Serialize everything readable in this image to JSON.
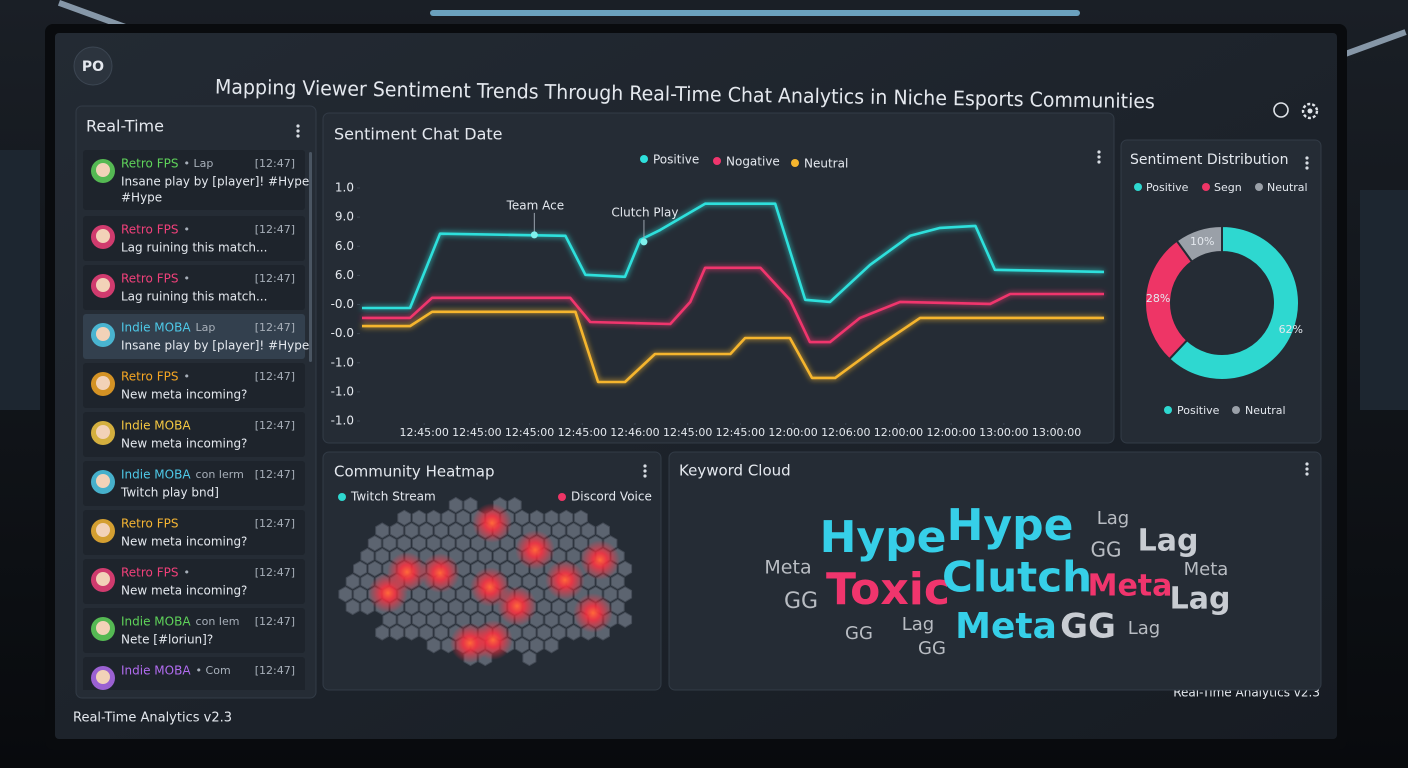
{
  "header": {
    "logo": "PO",
    "title": "Mapping Viewer Sentiment Trends Through Real-Time Chat Analytics in Niche Esports Communities"
  },
  "chat": {
    "title": "Real-Time",
    "messages": [
      {
        "channel": "Retro FPS",
        "tag": "• Lap",
        "time": "[12:47]",
        "lines": [
          "Insane play by [player]! #Hype",
          "#Hype"
        ],
        "color": "#5fd35a"
      },
      {
        "channel": "Retro FPS",
        "tag": "•",
        "time": "[12:47]",
        "lines": [
          "Lag ruining this match..."
        ],
        "color": "#f0407a"
      },
      {
        "channel": "Retro FPS",
        "tag": "•",
        "time": "[12:47]",
        "lines": [
          "Lag ruining this match..."
        ],
        "color": "#f0407a"
      },
      {
        "channel": "Indie MOBA",
        "tag": "Lap",
        "time": "[12:47]",
        "lines": [
          "Insane play by [player]! #Hype"
        ],
        "color": "#4ec9e8"
      },
      {
        "channel": "Retro FPS",
        "tag": "•",
        "time": "[12:47]",
        "lines": [
          "New meta incoming?"
        ],
        "color": "#f5a623"
      },
      {
        "channel": "Indie MOBA",
        "time": "[12:47]",
        "lines": [
          "New meta incoming?"
        ],
        "color": "#f5c842"
      },
      {
        "channel": "Indie MOBA",
        "tag": "con Ierm",
        "time": "[12:47]",
        "lines": [
          "Twitch play bnd]"
        ],
        "color": "#4ec9e8"
      },
      {
        "channel": "Retro FPS",
        "time": "[12:47]",
        "lines": [
          "New meta incoming?"
        ],
        "color": "#f5b533"
      },
      {
        "channel": "Retro FPS",
        "tag": "•",
        "time": "[12:47]",
        "lines": [
          "New meta incoming?"
        ],
        "color": "#f0407a"
      },
      {
        "channel": "Indie MOBA",
        "tag": "con Iem",
        "time": "[12:47]",
        "lines": [
          "Nete [#loriun]?"
        ],
        "color": "#5fd35a"
      },
      {
        "channel": "Indie MOBA",
        "tag": "• Com",
        "time": "[12:47]",
        "lines": [],
        "color": "#b16cf0"
      }
    ]
  },
  "sentiment_chart": {
    "type": "line",
    "title": "Sentiment Chat Date",
    "xlim": [
      -1.18,
      12.9
    ],
    "ylim": [
      0,
      8
    ],
    "xticks": [
      {
        "value": 0,
        "label": "12:45:00"
      },
      {
        "value": 1,
        "label": "12:45:00"
      },
      {
        "value": 2,
        "label": "12:45:00"
      },
      {
        "value": 3,
        "label": "12:45:00"
      },
      {
        "value": 4,
        "label": "12:46:00"
      },
      {
        "value": 5,
        "label": "12:45:00"
      },
      {
        "value": 6,
        "label": "12:45:00"
      },
      {
        "value": 7,
        "label": "12:00:00"
      },
      {
        "value": 8,
        "label": "12:06:00"
      },
      {
        "value": 9,
        "label": "12:00:00"
      },
      {
        "value": 10,
        "label": "12:00:00"
      },
      {
        "value": 11,
        "label": "13:00:00"
      },
      {
        "value": 12,
        "label": "13:00:00"
      }
    ],
    "yticks": [
      {
        "value": 8,
        "label": "1.0"
      },
      {
        "value": 7,
        "label": "9.0"
      },
      {
        "value": 6,
        "label": "6.0"
      },
      {
        "value": 5,
        "label": "6.0"
      },
      {
        "value": 4,
        "label": "-0.0"
      },
      {
        "value": 3,
        "label": "-0.0"
      },
      {
        "value": 2,
        "label": "-1.0"
      },
      {
        "value": 1,
        "label": "-1.0"
      },
      {
        "value": 0,
        "label": "-1.0"
      }
    ],
    "series": [
      {
        "name": "Positive",
        "color": "#2ee0dc",
        "x": [
          -1.18,
          -0.27,
          0.3,
          2.68,
          3.06,
          3.81,
          4.1,
          4.48,
          5.33,
          6.66,
          7.23,
          7.7,
          8.46,
          9.22,
          9.79,
          10.46,
          10.83,
          12.9
        ],
        "values": [
          3.88,
          3.88,
          6.43,
          6.36,
          5.02,
          4.95,
          6.22,
          6.56,
          7.46,
          7.46,
          4.16,
          4.09,
          5.36,
          6.36,
          6.63,
          6.7,
          5.19,
          5.12
        ]
      },
      {
        "name": "Nogative",
        "color": "#f0356d",
        "x": [
          -1.18,
          -0.27,
          0.15,
          2.77,
          3.15,
          4.67,
          5.05,
          5.33,
          6.38,
          6.94,
          7.32,
          7.7,
          8.27,
          9.03,
          10.74,
          11.12,
          12.9
        ],
        "values": [
          3.54,
          3.54,
          4.23,
          4.23,
          3.4,
          3.33,
          4.09,
          5.26,
          5.26,
          4.16,
          2.71,
          2.71,
          3.54,
          4.09,
          4.02,
          4.36,
          4.36
        ]
      },
      {
        "name": "Neutral",
        "color": "#f5b52e",
        "x": [
          -1.18,
          -0.27,
          0.15,
          2.87,
          3.3,
          3.81,
          4.38,
          5.81,
          6.09,
          6.94,
          7.36,
          7.8,
          8.65,
          9.41,
          12.9
        ],
        "values": [
          3.26,
          3.26,
          3.75,
          3.75,
          1.34,
          1.34,
          2.3,
          2.3,
          2.85,
          2.85,
          1.48,
          1.48,
          2.61,
          3.54,
          3.54
        ]
      }
    ],
    "annotations": [
      {
        "text": "Team Ace",
        "x": 2.09,
        "y": 6.39
      },
      {
        "text": "Clutch Play",
        "x": 4.17,
        "y": 6.15
      }
    ]
  },
  "distribution": {
    "type": "pie",
    "title": "Sentiment Distribution",
    "categories": [
      "Positive",
      "Segn",
      "Neutral"
    ],
    "colors": [
      "#2ed8d0",
      "#ee3566",
      "#9aa0a8"
    ],
    "values": [
      62,
      28,
      10
    ],
    "value_labels": [
      "62%",
      "28%",
      "10%"
    ],
    "bottom_legend": [
      {
        "name": "Positive",
        "color": "#2ed8d0"
      },
      {
        "name": "Neutral",
        "color": "#9aa0a8"
      }
    ]
  },
  "heatmap": {
    "title": "Community Heatmap",
    "legend": [
      {
        "name": "Twitch Stream",
        "color": "#2ed8d0"
      },
      {
        "name": "Discord Voice",
        "color": "#ee3566"
      }
    ]
  },
  "keywords": {
    "title": "Keyword Cloud",
    "words": [
      {
        "text": "Hype",
        "color": "#36cfe8"
      },
      {
        "text": "Hype",
        "color": "#36cfe8"
      },
      {
        "text": "Lag",
        "color": "#b8bcc2"
      },
      {
        "text": "GG",
        "color": "#b8bcc2"
      },
      {
        "text": "Lag",
        "color": "#c8ccd2"
      },
      {
        "text": "Meta",
        "color": "#b8bcc2"
      },
      {
        "text": "Toxic",
        "color": "#f0356d"
      },
      {
        "text": "Clutch",
        "color": "#36cfe8"
      },
      {
        "text": "Meta",
        "color": "#f0356d"
      },
      {
        "text": "Meta",
        "color": "#b8bcc2"
      },
      {
        "text": "GG",
        "color": "#b8bcc2"
      },
      {
        "text": "Lag",
        "color": "#c8ccd2"
      },
      {
        "text": "GG",
        "color": "#b8bcc2"
      },
      {
        "text": "Lag",
        "color": "#b8bcc2"
      },
      {
        "text": "Meta",
        "color": "#36cfe8"
      },
      {
        "text": "GG",
        "color": "#c8ccd2"
      },
      {
        "text": "Lag",
        "color": "#b8bcc2"
      },
      {
        "text": "GG",
        "color": "#b8bcc2"
      }
    ]
  },
  "footer": {
    "left": "Real-Time Analytics v2.3",
    "right": "Real-Time Analytics v2.3"
  }
}
